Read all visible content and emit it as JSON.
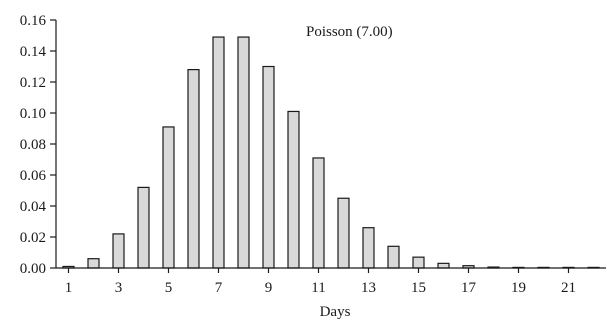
{
  "chart_data": {
    "type": "bar",
    "title": "",
    "annotation": "Poisson (7.00)",
    "xlabel": "Days",
    "ylabel": "",
    "categories": [
      1,
      2,
      3,
      4,
      5,
      6,
      7,
      8,
      9,
      10,
      11,
      12,
      13,
      14,
      15,
      16,
      17,
      18,
      19,
      20,
      21,
      22
    ],
    "values": [
      0.001,
      0.006,
      0.022,
      0.052,
      0.091,
      0.128,
      0.149,
      0.149,
      0.13,
      0.101,
      0.071,
      0.045,
      0.026,
      0.014,
      0.007,
      0.003,
      0.0015,
      0.0006,
      0.0002,
      0.0001,
      3e-05,
      1e-05
    ],
    "xtick_labels": [
      "1",
      "3",
      "5",
      "7",
      "9",
      "11",
      "13",
      "15",
      "17",
      "19",
      "21"
    ],
    "ytick_labels": [
      "0.00",
      "0.02",
      "0.04",
      "0.06",
      "0.08",
      "0.10",
      "0.12",
      "0.14",
      "0.16"
    ],
    "ylim": [
      0,
      0.16
    ],
    "grid": false,
    "colors": {
      "bar_fill": "#d9d9d9",
      "bar_stroke": "#1a1a1a"
    }
  }
}
